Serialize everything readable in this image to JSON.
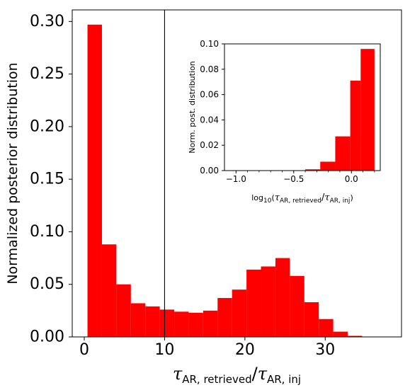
{
  "chart_data": [
    {
      "type": "bar",
      "bar_color": "#ff0000",
      "ylabel": "Normalized posterior distribution",
      "xlabel": {
        "base": "τ",
        "num_sub": "AR, retrieved",
        "sep": "/",
        "den_sub": "AR, inj"
      },
      "xlim": [
        -1.5,
        39.5
      ],
      "ylim": [
        0,
        0.311
      ],
      "xticks": [
        0,
        10,
        20,
        30
      ],
      "xtick_labels": [
        "0",
        "10",
        "20",
        "30"
      ],
      "yticks": [
        0,
        0.05,
        0.1,
        0.15,
        0.2,
        0.25,
        0.3
      ],
      "ytick_labels": [
        "0.00",
        "0.05",
        "0.10",
        "0.15",
        "0.20",
        "0.25",
        "0.30"
      ],
      "vertical_line_x": 10,
      "bin_edges": [
        0.4,
        2.2,
        4.0,
        5.8,
        7.6,
        9.4,
        11.2,
        13.0,
        14.8,
        16.6,
        18.4,
        20.2,
        22.0,
        23.8,
        25.6,
        27.4,
        29.2,
        31.0,
        32.8,
        34.6,
        36.4
      ],
      "values": [
        0.297,
        0.088,
        0.05,
        0.032,
        0.029,
        0.026,
        0.024,
        0.023,
        0.025,
        0.037,
        0.045,
        0.064,
        0.067,
        0.075,
        0.058,
        0.033,
        0.017,
        0.005,
        0.001,
        0.0
      ]
    },
    {
      "type": "bar",
      "bar_color": "#ff0000",
      "ylabel": "Norm. post. distribution",
      "xlabel": {
        "pre": "log",
        "pre_sub": "10",
        "base": "τ",
        "num_sub": "AR, retrieved",
        "sep": "/",
        "den_sub": "AR, inj"
      },
      "xlim": [
        -1.1,
        0.25
      ],
      "ylim": [
        0,
        0.1
      ],
      "xticks": [
        -1.0,
        -0.5,
        0.0
      ],
      "xtick_labels": [
        "−1.0",
        "−0.5",
        "0.0"
      ],
      "yticks": [
        0,
        0.02,
        0.04,
        0.06,
        0.08,
        0.1
      ],
      "ytick_labels": [
        "0.00",
        "0.02",
        "0.04",
        "0.06",
        "0.08",
        "0.10"
      ],
      "bin_edges": [
        -0.4,
        -0.27,
        -0.14,
        -0.01,
        0.08,
        0.2
      ],
      "values": [
        0.001,
        0.007,
        0.027,
        0.071,
        0.096
      ]
    }
  ]
}
